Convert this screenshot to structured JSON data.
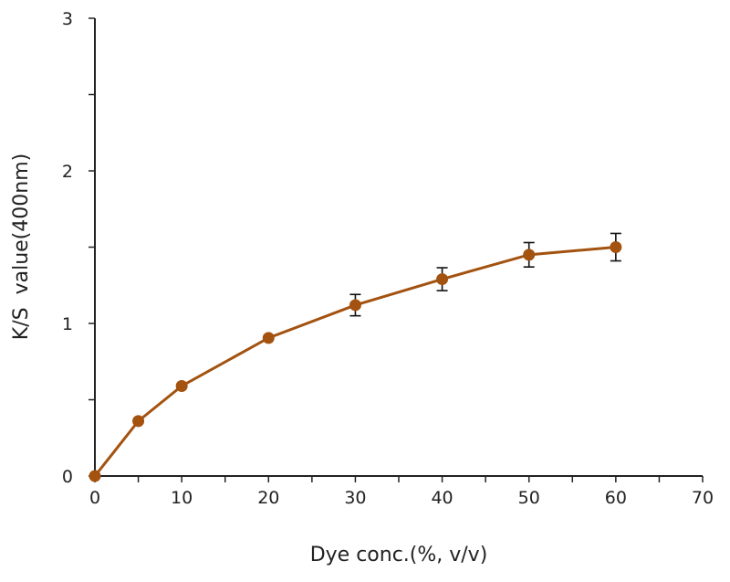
{
  "chart_data": {
    "type": "line",
    "title": "",
    "xlabel": "Dye conc.(%, v/v)",
    "ylabel": "K/S  value(400nm)",
    "xlim": [
      0,
      70
    ],
    "ylim": [
      0,
      3
    ],
    "xticks": [
      0,
      10,
      20,
      30,
      40,
      50,
      60,
      70
    ],
    "yticks": [
      0,
      1,
      2,
      3
    ],
    "x_minor_step": 5,
    "y_minor_step": 0.5,
    "grid": false,
    "legend": "none",
    "color": "#a3520f",
    "errorbar_color": "#111111",
    "series": [
      {
        "x": [
          0,
          5,
          10,
          20,
          30,
          40,
          50,
          60
        ],
        "y": [
          0,
          0.36,
          0.59,
          0.905,
          1.12,
          1.29,
          1.45,
          1.5
        ],
        "yerr": [
          0,
          0,
          0,
          0,
          0.07,
          0.075,
          0.08,
          0.09
        ]
      }
    ]
  }
}
